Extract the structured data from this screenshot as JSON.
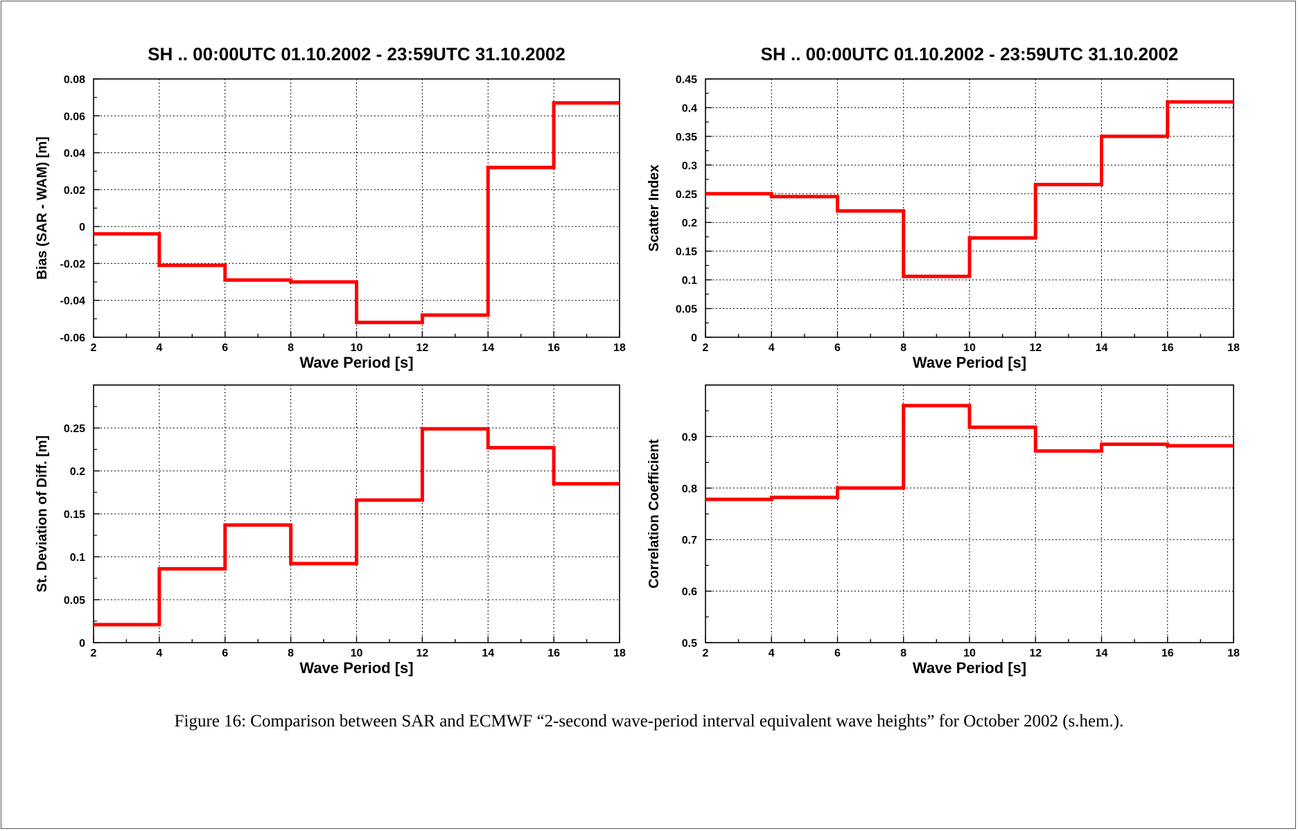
{
  "caption": "Figure 16: Comparison between SAR and ECMWF “2-second wave-period interval equivalent wave heights” for October 2002 (s.hem.).",
  "colors": {
    "series": "#ff0000",
    "grid": "#000000",
    "axis": "#000000"
  },
  "chart_data": [
    {
      "type": "line",
      "step": true,
      "title": "SH .. 00:00UTC 01.10.2002 - 23:59UTC 31.10.2002",
      "xlabel": "Wave Period   [s]",
      "ylabel": "Bias (SAR - WAM)   [m]",
      "xlim": [
        2,
        18
      ],
      "ylim": [
        -0.06,
        0.08
      ],
      "xticks": [
        2,
        4,
        6,
        8,
        10,
        12,
        14,
        16,
        18
      ],
      "yticks": [
        -0.06,
        -0.04,
        -0.02,
        0,
        0.02,
        0.04,
        0.06,
        0.08
      ],
      "ytick_labels": [
        "-0.06",
        "-0.04",
        "-0.02",
        "0",
        "0.02",
        "0.04",
        "0.06",
        "0.08"
      ],
      "grid": true,
      "bin_edges": [
        2,
        4,
        6,
        8,
        10,
        12,
        14,
        16,
        18
      ],
      "values": [
        -0.004,
        -0.021,
        -0.029,
        -0.03,
        -0.052,
        -0.048,
        0.032,
        0.067
      ]
    },
    {
      "type": "line",
      "step": true,
      "title": "SH .. 00:00UTC 01.10.2002 - 23:59UTC 31.10.2002",
      "xlabel": "Wave Period   [s]",
      "ylabel": "Scatter Index",
      "xlim": [
        2,
        18
      ],
      "ylim": [
        0,
        0.45
      ],
      "xticks": [
        2,
        4,
        6,
        8,
        10,
        12,
        14,
        16,
        18
      ],
      "yticks": [
        0,
        0.05,
        0.1,
        0.15,
        0.2,
        0.25,
        0.3,
        0.35,
        0.4,
        0.45
      ],
      "ytick_labels": [
        "0",
        "0.05",
        "0.1",
        "0.15",
        "0.2",
        "0.25",
        "0.3",
        "0.35",
        "0.4",
        "0.45"
      ],
      "grid": true,
      "bin_edges": [
        2,
        4,
        6,
        8,
        10,
        12,
        14,
        16,
        18
      ],
      "values": [
        0.25,
        0.245,
        0.22,
        0.106,
        0.173,
        0.266,
        0.35,
        0.41
      ]
    },
    {
      "type": "line",
      "step": true,
      "title": "",
      "xlabel": "Wave Period   [s]",
      "ylabel": "St. Deviation of Diff.  [m]",
      "xlim": [
        2,
        18
      ],
      "ylim": [
        0,
        0.3
      ],
      "xticks": [
        2,
        4,
        6,
        8,
        10,
        12,
        14,
        16,
        18
      ],
      "yticks": [
        0,
        0.05,
        0.1,
        0.15,
        0.2,
        0.25
      ],
      "ytick_labels": [
        "0",
        "0.05",
        "0.1",
        "0.15",
        "0.2",
        "0.25"
      ],
      "grid": true,
      "bin_edges": [
        2,
        4,
        6,
        8,
        10,
        12,
        14,
        16,
        18
      ],
      "values": [
        0.021,
        0.086,
        0.137,
        0.092,
        0.166,
        0.249,
        0.227,
        0.185
      ]
    },
    {
      "type": "line",
      "step": true,
      "title": "",
      "xlabel": "Wave Period   [s]",
      "ylabel": "Correlation  Coefficient",
      "xlim": [
        2,
        18
      ],
      "ylim": [
        0.5,
        1.0
      ],
      "xticks": [
        2,
        4,
        6,
        8,
        10,
        12,
        14,
        16,
        18
      ],
      "yticks": [
        0.5,
        0.6,
        0.7,
        0.8,
        0.9
      ],
      "ytick_labels": [
        "0.5",
        "0.6",
        "0.7",
        "0.8",
        "0.9"
      ],
      "grid": true,
      "bin_edges": [
        2,
        4,
        6,
        8,
        10,
        12,
        14,
        16,
        18
      ],
      "values": [
        0.778,
        0.782,
        0.8,
        0.96,
        0.918,
        0.872,
        0.885,
        0.882
      ]
    }
  ]
}
